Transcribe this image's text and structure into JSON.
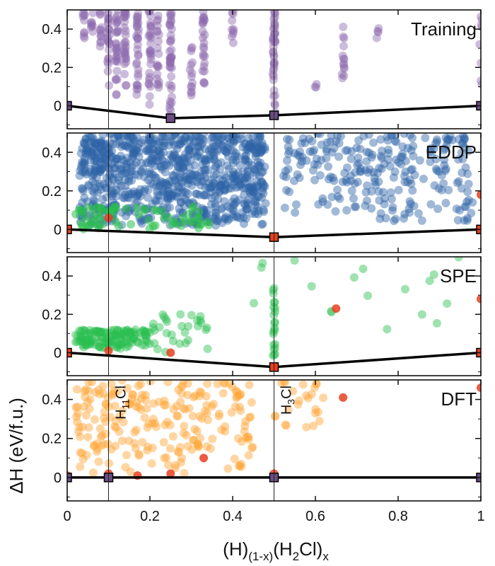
{
  "chart_data": {
    "type": "scatter",
    "xlabel": "(H)(1-x)(H2Cl)x",
    "xlabel_parts": {
      "a": "(H)",
      "a_sub": "(1-x)",
      "b": "(H",
      "b_sub": "2",
      "c": "Cl)",
      "c_sub": "x"
    },
    "ylabel": "ΔH (eV/f.u.)",
    "xlim": [
      0,
      1
    ],
    "ylim": [
      -0.12,
      0.5
    ],
    "xticks": [
      0,
      0.2,
      0.4,
      0.6,
      0.8,
      1
    ],
    "xtick_labels": [
      "0",
      "0.2",
      "0.4",
      "0.6",
      "0.8",
      "1"
    ],
    "yticks": [
      0,
      0.2,
      0.4
    ],
    "ytick_labels": [
      "0",
      "0.2",
      "0.4"
    ],
    "reference_lines_x": [
      0.1,
      0.5
    ],
    "annotations": [
      {
        "x": 0.1,
        "text": "H11Cl",
        "parts": [
          "H",
          "11",
          "Cl"
        ]
      },
      {
        "x": 0.5,
        "text": "H3Cl",
        "parts": [
          "H",
          "3",
          "Cl"
        ]
      }
    ],
    "colors": {
      "training": "#8e6bb0",
      "eddp": "#2e63a6",
      "near_hull": "#2bbf4f",
      "dft": "#ffa534",
      "hull_point": "#e8401f",
      "hull_line": "#000000"
    },
    "panels": [
      {
        "title": "Training",
        "hull": [
          [
            0,
            0
          ],
          [
            0.25,
            -0.065
          ],
          [
            0.5,
            -0.05
          ],
          [
            1,
            0
          ]
        ],
        "hull_markers": "dark",
        "color": "training",
        "groups": [
          {
            "x": 0.04,
            "y": [
              0.3,
              0.5
            ],
            "n": 10
          },
          {
            "x": 0.06,
            "y": [
              0.35,
              0.5
            ],
            "n": 8
          },
          {
            "x": 0.08,
            "y": [
              0.3,
              0.5
            ],
            "n": 12
          },
          {
            "x": 0.1,
            "y": [
              0.1,
              0.5
            ],
            "n": 25
          },
          {
            "x": 0.12,
            "y": [
              0.05,
              0.5
            ],
            "n": 30
          },
          {
            "x": 0.14,
            "y": [
              0.08,
              0.5
            ],
            "n": 30
          },
          {
            "x": 0.17,
            "y": [
              0.02,
              0.5
            ],
            "n": 30
          },
          {
            "x": 0.2,
            "y": [
              0.0,
              0.5
            ],
            "n": 30
          },
          {
            "x": 0.22,
            "y": [
              0.05,
              0.5
            ],
            "n": 20
          },
          {
            "x": 0.25,
            "y": [
              -0.06,
              0.5
            ],
            "n": 40
          },
          {
            "x": 0.3,
            "y": [
              0.05,
              0.35
            ],
            "n": 14
          },
          {
            "x": 0.33,
            "y": [
              0.1,
              0.5
            ],
            "n": 25
          },
          {
            "x": 0.4,
            "y": [
              0.32,
              0.5
            ],
            "n": 10
          },
          {
            "x": 0.5,
            "y": [
              -0.05,
              0.5
            ],
            "n": 40
          },
          {
            "x": 0.6,
            "y": [
              0.08,
              0.12
            ],
            "n": 3
          },
          {
            "x": 0.667,
            "y": [
              0.1,
              0.42
            ],
            "n": 14
          },
          {
            "x": 0.75,
            "y": [
              0.35,
              0.42
            ],
            "n": 4
          },
          {
            "x": 1.0,
            "y": [
              0.1,
              0.5
            ],
            "n": 8
          }
        ]
      },
      {
        "title": "EDDP",
        "hull": [
          [
            0,
            0
          ],
          [
            0.5,
            -0.04
          ],
          [
            1,
            0
          ]
        ],
        "hull_markers": "red",
        "color": "eddp",
        "hull_points": [
          [
            0,
            0.0
          ],
          [
            0.1,
            0.06
          ],
          [
            0.5,
            -0.04
          ],
          [
            1,
            0.0
          ],
          [
            1,
            0.18
          ]
        ],
        "groups": [
          {
            "x": [
              0.03,
              0.48
            ],
            "y": [
              0.02,
              0.5
            ],
            "n": 900
          },
          {
            "x": [
              0.52,
              0.98
            ],
            "y": [
              0.04,
              0.5
            ],
            "n": 260
          }
        ],
        "green": {
          "x": [
            0.02,
            0.35
          ],
          "y": [
            0.0,
            0.12
          ],
          "n": 70
        }
      },
      {
        "title": "SPE",
        "hull": [
          [
            0,
            0
          ],
          [
            0.5,
            -0.075
          ],
          [
            1,
            0
          ]
        ],
        "hull_markers": "red",
        "color": "near_hull",
        "hull_points": [
          [
            0,
            0.0
          ],
          [
            0.1,
            0.01
          ],
          [
            0.25,
            0.0
          ],
          [
            0.5,
            -0.075
          ],
          [
            1,
            0.0
          ],
          [
            1,
            0.28
          ],
          [
            0.65,
            0.23
          ]
        ],
        "groups": [
          {
            "x": [
              0.02,
              0.2
            ],
            "y": [
              0.02,
              0.12
            ],
            "n": 140
          },
          {
            "x": [
              0.2,
              0.34
            ],
            "y": [
              0.0,
              0.2
            ],
            "n": 30
          },
          {
            "x": 0.5,
            "y": [
              -0.05,
              0.35
            ],
            "n": 22
          },
          {
            "x": [
              0.4,
              1.0
            ],
            "y": [
              0.1,
              0.5
            ],
            "n": 18
          }
        ]
      },
      {
        "title": "DFT",
        "hull": [
          [
            0,
            0
          ],
          [
            0.1,
            0
          ],
          [
            0.5,
            0
          ],
          [
            1,
            0
          ]
        ],
        "hull_markers": "dark",
        "color": "dft",
        "hull_points": [
          [
            0,
            0.01
          ],
          [
            0.1,
            0.02
          ],
          [
            0.17,
            0.01
          ],
          [
            0.25,
            0.02
          ],
          [
            0.33,
            0.1
          ],
          [
            0.5,
            0.02
          ],
          [
            0.667,
            0.41
          ],
          [
            1,
            0.46
          ]
        ],
        "groups": [
          {
            "x": [
              0.02,
              0.45
            ],
            "y": [
              0.02,
              0.5
            ],
            "n": 230
          },
          {
            "x": [
              0.5,
              0.62
            ],
            "y": [
              0.25,
              0.5
            ],
            "n": 25
          }
        ]
      }
    ]
  }
}
